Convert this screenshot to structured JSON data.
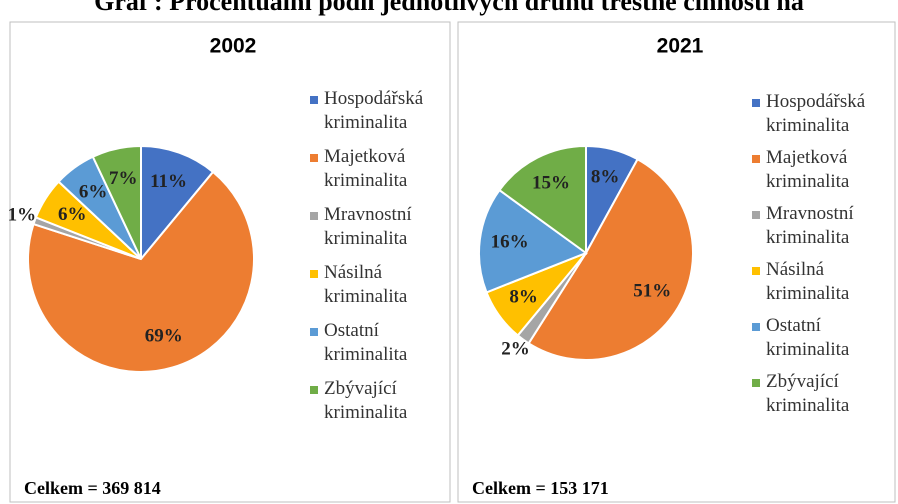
{
  "title": "Graf : Procentuální podíl jednotlivých druhů trestné činnosti na",
  "chart_data": [
    {
      "type": "pie",
      "title": "2002",
      "note": "Celkem = 369 814",
      "categories": [
        "Hospodářská kriminalita",
        "Majetková kriminalita",
        "Mravnostní kriminalita",
        "Násilná kriminalita",
        "Ostatní kriminalita",
        "Zbývající kriminalita"
      ],
      "values": [
        11,
        69,
        1,
        6,
        6,
        7
      ],
      "value_labels": [
        "11%",
        "69%",
        "1%",
        "6%",
        "6%",
        "7%"
      ],
      "colors": [
        "#4472c4",
        "#ed7d31",
        "#a5a5a5",
        "#ffc000",
        "#5b9bd5",
        "#70ad47"
      ],
      "legend": "right"
    },
    {
      "type": "pie",
      "title": "2021",
      "note": "Celkem = 153 171",
      "categories": [
        "Hospodářská kriminalita",
        "Majetková kriminalita",
        "Mravnostní kriminalita",
        "Násilná kriminalita",
        "Ostatní kriminalita",
        "Zbývající kriminalita"
      ],
      "values": [
        8,
        51,
        2,
        8,
        16,
        15
      ],
      "value_labels": [
        "8%",
        "51%",
        "2%",
        "8%",
        "16%",
        "15%"
      ],
      "colors": [
        "#4472c4",
        "#ed7d31",
        "#a5a5a5",
        "#ffc000",
        "#5b9bd5",
        "#70ad47"
      ],
      "legend": "right"
    }
  ]
}
